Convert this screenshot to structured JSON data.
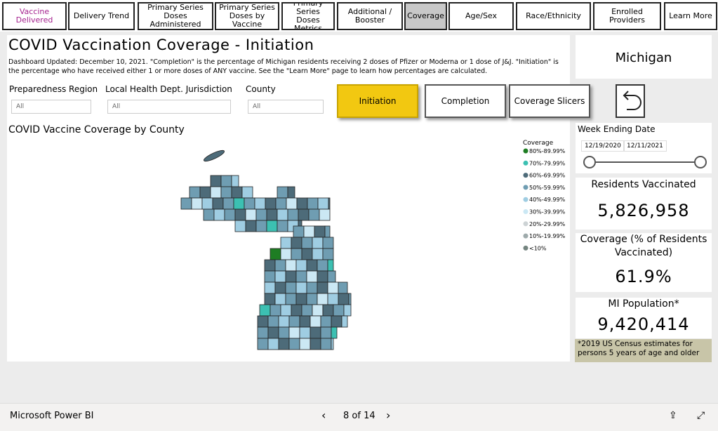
{
  "tabs": [
    "Vaccine Delivered",
    "Delivery Trend",
    "Primary Series Doses Administered",
    "Primary Series Doses by Vaccine",
    "Primary Series Doses Metrics",
    "Additional / Booster",
    "Coverage",
    "Age/Sex",
    "Race/Ethnicity",
    "Enrolled Providers",
    "Learn More"
  ],
  "header": {
    "title": "COVID Vaccination Coverage - Initiation",
    "description": "Dashboard Updated: December 10, 2021. \"Completion\" is the percentage of Michigan residents receiving 2 doses of Pfizer or Moderna or 1 dose of J&J. \"Initiation\" is the percentage who have received either 1 or more doses of ANY vaccine. See the \"Learn More\" page to learn how percentages are calculated.",
    "state": "Michigan"
  },
  "filters": [
    {
      "label": "Preparedness Region",
      "value": "All"
    },
    {
      "label": "Local Health Dept. Jurisdiction",
      "value": "All"
    },
    {
      "label": "County",
      "value": "All"
    }
  ],
  "buttons": [
    "Initiation",
    "Completion",
    "Coverage Slicers"
  ],
  "map": {
    "title": "COVID Vaccine Coverage by County",
    "legend_title": "Coverage",
    "legend": [
      {
        "label": "80%-89.99%",
        "color": "#1e7d23"
      },
      {
        "label": "70%-79.99%",
        "color": "#3cc0b2"
      },
      {
        "label": "60%-69.99%",
        "color": "#4d6b79"
      },
      {
        "label": "50%-59.99%",
        "color": "#6f9db2"
      },
      {
        "label": "40%-49.99%",
        "color": "#9fcde2"
      },
      {
        "label": "30%-39.99%",
        "color": "#cbe8f4"
      },
      {
        "label": "20%-29.99%",
        "color": "#cdd3d5"
      },
      {
        "label": "10%-19.99%",
        "color": "#9eaaab"
      },
      {
        "label": "<10%",
        "color": "#74847f"
      }
    ]
  },
  "date_slicer": {
    "label": "Week Ending Date",
    "start": "12/19/2020",
    "end": "12/11/2021"
  },
  "cards": [
    {
      "label": "Residents Vaccinated",
      "value": "5,826,958"
    },
    {
      "label": "Coverage (% of Residents Vaccinated)",
      "value": "61.9%"
    },
    {
      "label": "MI Population*",
      "value": "9,420,414"
    }
  ],
  "footnote": "*2019 US Census estimates for persons 5 years of age and older",
  "footer": {
    "brand": "Microsoft Power BI",
    "page": "8 of 14"
  }
}
